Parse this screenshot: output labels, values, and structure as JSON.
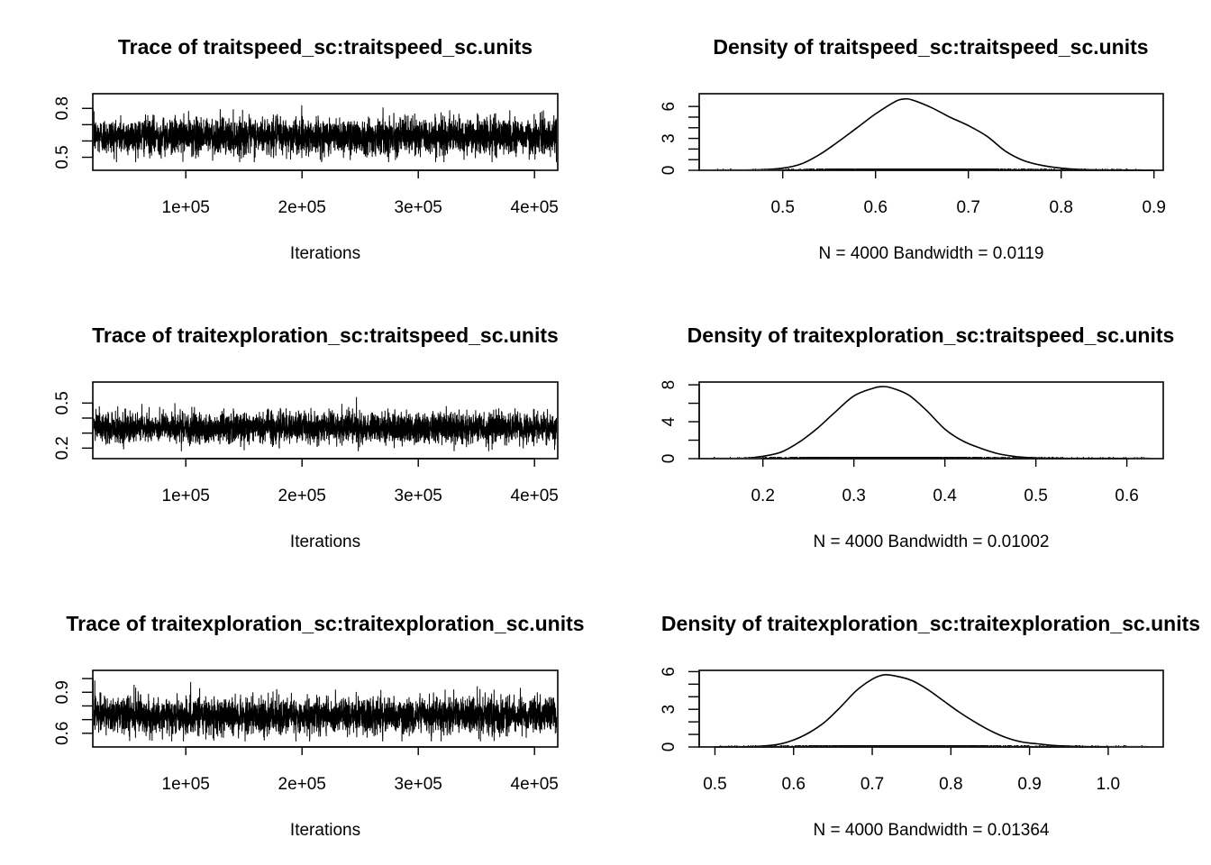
{
  "chart_data": [
    {
      "type": "line",
      "panel": "trace",
      "title": "Trace of traitspeed_sc:traitspeed_sc.units",
      "xlabel": "Iterations",
      "ylabel": "",
      "xlim": [
        20000,
        420000
      ],
      "ylim": [
        0.42,
        0.89
      ],
      "x_ticks": [
        100000,
        200000,
        300000,
        400000
      ],
      "x_tick_labels": [
        "1e+05",
        "2e+05",
        "3e+05",
        "4e+05"
      ],
      "y_ticks": [
        0.5,
        0.6,
        0.7,
        0.8
      ],
      "y_tick_labels": [
        "0.5",
        "",
        "",
        "0.8"
      ],
      "n_samples": 4000,
      "center": 0.63,
      "spread": 0.055,
      "range": [
        0.47,
        0.86
      ]
    },
    {
      "type": "line",
      "panel": "density",
      "title": "Density of traitspeed_sc:traitspeed_sc.units",
      "xlabel": "N = 4000   Bandwidth = 0.0119",
      "ylabel": "",
      "xlim": [
        0.41,
        0.91
      ],
      "ylim": [
        0,
        7.2
      ],
      "x_ticks": [
        0.5,
        0.6,
        0.7,
        0.8,
        0.9
      ],
      "x_tick_labels": [
        "0.5",
        "0.6",
        "0.7",
        "0.8",
        "0.9"
      ],
      "y_ticks": [
        0,
        1,
        2,
        3,
        4,
        5,
        6
      ],
      "y_tick_labels": [
        "0",
        "",
        "",
        "3",
        "",
        "",
        "6"
      ],
      "rug_range": [
        0.427,
        0.888
      ],
      "x": [
        0.427,
        0.47,
        0.5,
        0.52,
        0.54,
        0.56,
        0.58,
        0.6,
        0.62,
        0.63,
        0.64,
        0.66,
        0.68,
        0.7,
        0.72,
        0.74,
        0.76,
        0.78,
        0.8,
        0.82,
        0.85,
        0.888
      ],
      "y": [
        0,
        0.03,
        0.2,
        0.6,
        1.5,
        2.7,
        4.0,
        5.3,
        6.4,
        6.7,
        6.6,
        5.9,
        5.0,
        4.2,
        3.2,
        1.8,
        0.9,
        0.45,
        0.2,
        0.08,
        0.02,
        0
      ]
    },
    {
      "type": "line",
      "panel": "trace",
      "title": "Trace of traitexploration_sc:traitspeed_sc.units",
      "xlabel": "Iterations",
      "ylabel": "",
      "xlim": [
        20000,
        420000
      ],
      "ylim": [
        0.13,
        0.64
      ],
      "x_ticks": [
        100000,
        200000,
        300000,
        400000
      ],
      "x_tick_labels": [
        "1e+05",
        "2e+05",
        "3e+05",
        "4e+05"
      ],
      "y_ticks": [
        0.2,
        0.3,
        0.4,
        0.5
      ],
      "y_tick_labels": [
        "0.2",
        "",
        "",
        "0.5"
      ],
      "n_samples": 4000,
      "center": 0.335,
      "spread": 0.05,
      "range": [
        0.18,
        0.6
      ]
    },
    {
      "type": "line",
      "panel": "density",
      "title": "Density of traitexploration_sc:traitspeed_sc.units",
      "xlabel": "N = 4000   Bandwidth = 0.01002",
      "ylabel": "",
      "xlim": [
        0.13,
        0.64
      ],
      "ylim": [
        0,
        8.3
      ],
      "x_ticks": [
        0.2,
        0.3,
        0.4,
        0.5,
        0.6
      ],
      "x_tick_labels": [
        "0.2",
        "0.3",
        "0.4",
        "0.5",
        "0.6"
      ],
      "y_ticks": [
        0,
        2,
        4,
        6,
        8
      ],
      "y_tick_labels": [
        "0",
        "",
        "4",
        "",
        "8"
      ],
      "rug_range": [
        0.145,
        0.625
      ],
      "x": [
        0.145,
        0.18,
        0.2,
        0.22,
        0.24,
        0.26,
        0.28,
        0.3,
        0.32,
        0.33,
        0.34,
        0.36,
        0.38,
        0.4,
        0.42,
        0.44,
        0.46,
        0.48,
        0.5,
        0.55,
        0.625
      ],
      "y": [
        0,
        0.05,
        0.25,
        0.7,
        1.8,
        3.3,
        5.1,
        6.8,
        7.6,
        7.8,
        7.7,
        6.9,
        5.2,
        3.2,
        1.9,
        1.1,
        0.5,
        0.2,
        0.08,
        0.01,
        0
      ]
    },
    {
      "type": "line",
      "panel": "trace",
      "title": "Trace of traitexploration_sc:traitexploration_sc.units",
      "xlabel": "Iterations",
      "ylabel": "",
      "xlim": [
        20000,
        420000
      ],
      "ylim": [
        0.5,
        1.06
      ],
      "x_ticks": [
        100000,
        200000,
        300000,
        400000
      ],
      "x_tick_labels": [
        "1e+05",
        "2e+05",
        "3e+05",
        "4e+05"
      ],
      "y_ticks": [
        0.6,
        0.7,
        0.8,
        0.9,
        1.0
      ],
      "y_tick_labels": [
        "0.6",
        "",
        "",
        "0.9",
        ""
      ],
      "n_samples": 4000,
      "center": 0.73,
      "spread": 0.065,
      "range": [
        0.54,
        1.04
      ]
    },
    {
      "type": "line",
      "panel": "density",
      "title": "Density of traitexploration_sc:traitexploration_sc.units",
      "xlabel": "N = 4000   Bandwidth = 0.01364",
      "ylabel": "",
      "xlim": [
        0.48,
        1.07
      ],
      "ylim": [
        0,
        6.1
      ],
      "x_ticks": [
        0.5,
        0.6,
        0.7,
        0.8,
        0.9,
        1.0
      ],
      "x_tick_labels": [
        "0.5",
        "0.6",
        "0.7",
        "0.8",
        "0.9",
        "1.0"
      ],
      "y_ticks": [
        0,
        1,
        2,
        3,
        4,
        5,
        6
      ],
      "y_tick_labels": [
        "0",
        "",
        "",
        "3",
        "",
        "",
        "6"
      ],
      "rug_range": [
        0.505,
        1.05
      ],
      "x": [
        0.505,
        0.55,
        0.58,
        0.6,
        0.62,
        0.64,
        0.66,
        0.68,
        0.7,
        0.715,
        0.73,
        0.75,
        0.77,
        0.79,
        0.81,
        0.83,
        0.85,
        0.87,
        0.89,
        0.91,
        0.93,
        0.96,
        1.0,
        1.05
      ],
      "y": [
        0,
        0.04,
        0.2,
        0.55,
        1.15,
        2.0,
        3.2,
        4.5,
        5.4,
        5.75,
        5.65,
        5.3,
        4.6,
        3.7,
        2.8,
        2.0,
        1.3,
        0.75,
        0.4,
        0.25,
        0.12,
        0.04,
        0.01,
        0
      ]
    }
  ]
}
